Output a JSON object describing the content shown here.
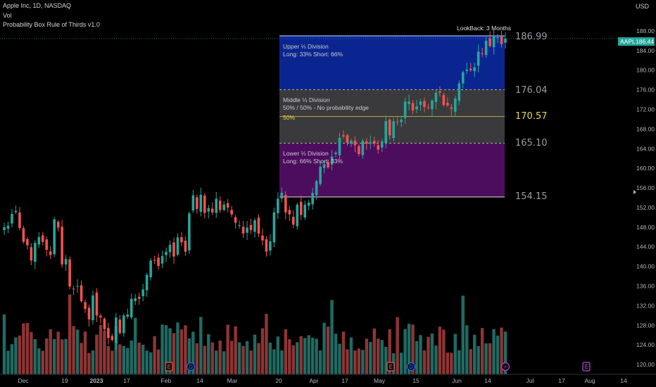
{
  "header": {
    "symbol_line": "Apple Inc, 1D, NASDAQ",
    "volume_label": "Vol",
    "indicator_label": "Probability Box Rule of Thirds v1.0"
  },
  "currency": "USD",
  "lookback": "LookBack: 3 Months",
  "ticker": {
    "symbol": "AAPL",
    "price": "186.44"
  },
  "box": {
    "upper": {
      "title": "Upper ⅓ Division",
      "text": "Long: 33% Short: 66%",
      "color": "#0b2590"
    },
    "middle": {
      "title": "Middle ⅓ Division",
      "text": "50% / 50% - No probability edge",
      "color": "#3a3a3c"
    },
    "mid_label": "50%",
    "lower": {
      "title": "Lower ⅓ Division",
      "text": "Long: 66% Short: 33%",
      "color": "#4d0d5e"
    },
    "levels": {
      "top": "186.99",
      "upper_third": "176.04",
      "mid": "170.57",
      "lower_third": "165.10",
      "bottom": "154.15"
    }
  },
  "events": [
    {
      "glyph": "E",
      "date": "Feb",
      "kind": "earnings"
    },
    {
      "glyph": "D",
      "date": "Feb",
      "kind": "dividend"
    },
    {
      "glyph": "E",
      "date": "May",
      "kind": "earnings"
    },
    {
      "glyph": "D",
      "date": "May",
      "kind": "dividend"
    },
    {
      "glyph": "⚡",
      "date": "Jun",
      "kind": "split"
    },
    {
      "glyph": "E",
      "date": "Aug",
      "kind": "earnings"
    }
  ],
  "chart_data": {
    "type": "candlestick",
    "y_ticks": [
      120,
      124,
      128,
      132,
      136,
      140,
      144,
      148,
      152,
      156,
      160,
      164,
      168,
      172,
      176,
      180,
      184,
      188
    ],
    "x_ticks": [
      "Dec",
      "19",
      "2023",
      "17",
      "Feb",
      "14",
      "Mar",
      "20",
      "Apr",
      "17",
      "May",
      "15",
      "Jun",
      "14",
      "Jul",
      "17",
      "Aug",
      "14"
    ],
    "ylim": [
      118,
      190
    ],
    "bull_color": "#26a69a",
    "bear_color": "#ef5350",
    "close": [
      148.0,
      148.3,
      150.7,
      151.3,
      147.8,
      145.0,
      144.3,
      141.2,
      144.8,
      146.0,
      145.0,
      143.4,
      142.3,
      149.6,
      147.9,
      140.4,
      141.5,
      135.9,
      135.4,
      136.0,
      132.9,
      131.3,
      129.2,
      134.1,
      130.0,
      129.6,
      127.2,
      125.4,
      125.0,
      129.6,
      126.4,
      130.0,
      130.2,
      133.4,
      133.5,
      133.4,
      135.3,
      138.3,
      141.2,
      141.3,
      140.1,
      142.1,
      143.0,
      144.4,
      142.0,
      145.9,
      144.9,
      143.0,
      150.8,
      154.5,
      151.7,
      154.6,
      150.9,
      151.9,
      151.0,
      153.8,
      151.5,
      152.6,
      152.0,
      150.6,
      148.9,
      148.4,
      146.7,
      147.9,
      147.4,
      149.4,
      146.7,
      145.3,
      143.0,
      145.1,
      151.0,
      153.8,
      155.0,
      151.0,
      150.6,
      148.5,
      152.6,
      150.5,
      152.6,
      153.0,
      155.0,
      157.4,
      160.3,
      160.8,
      160.2,
      162.4,
      163.2,
      166.2,
      166.5,
      165.2,
      165.6,
      164.7,
      162.9,
      165.6,
      165.0,
      165.3,
      165.0,
      163.8,
      165.5,
      169.6,
      166.7,
      169.6,
      169.4,
      169.9,
      173.6,
      173.6,
      171.8,
      172.6,
      173.6,
      172.5,
      172.4,
      173.8,
      175.4,
      175.4,
      172.9,
      172.8,
      172.1,
      174.2,
      177.3,
      179.6,
      180.1,
      180.0,
      180.6,
      183.8,
      183.3,
      186.0,
      184.9,
      187.0,
      186.7,
      185.3,
      186.4
    ]
  }
}
